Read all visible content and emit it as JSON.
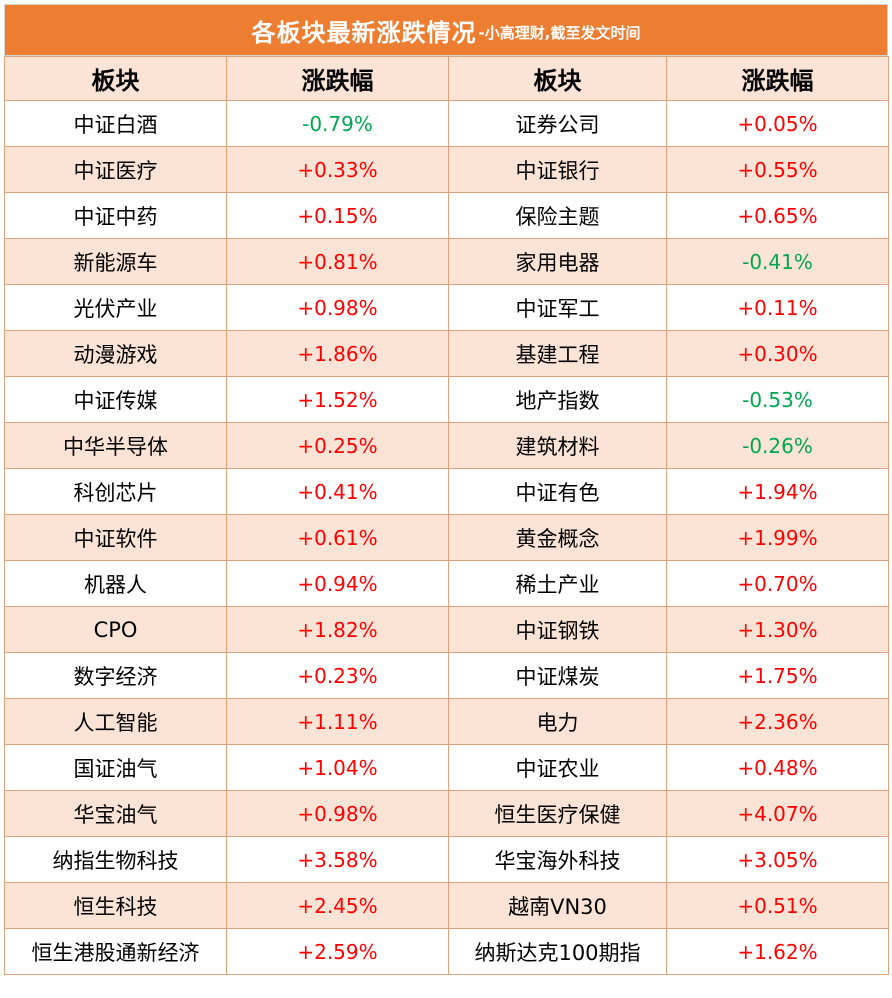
{
  "title": {
    "main": "各板块最新涨跌情况",
    "sub": "-小高理财,截至发文时间"
  },
  "headers": [
    "板块",
    "涨跌幅",
    "板块",
    "涨跌幅"
  ],
  "colors": {
    "header_bg": "#ed7d31",
    "stripe_bg": "#fbe4d5",
    "up": "#ff0000",
    "down": "#00a650"
  },
  "rows": [
    {
      "l_name": "中证白酒",
      "l_val": "-0.79%",
      "r_name": "证券公司",
      "r_val": "+0.05%"
    },
    {
      "l_name": "中证医疗",
      "l_val": "+0.33%",
      "r_name": "中证银行",
      "r_val": "+0.55%"
    },
    {
      "l_name": "中证中药",
      "l_val": "+0.15%",
      "r_name": "保险主题",
      "r_val": "+0.65%"
    },
    {
      "l_name": "新能源车",
      "l_val": "+0.81%",
      "r_name": "家用电器",
      "r_val": "-0.41%"
    },
    {
      "l_name": "光伏产业",
      "l_val": "+0.98%",
      "r_name": "中证军工",
      "r_val": "+0.11%"
    },
    {
      "l_name": "动漫游戏",
      "l_val": "+1.86%",
      "r_name": "基建工程",
      "r_val": "+0.30%"
    },
    {
      "l_name": "中证传媒",
      "l_val": "+1.52%",
      "r_name": "地产指数",
      "r_val": "-0.53%"
    },
    {
      "l_name": "中华半导体",
      "l_val": "+0.25%",
      "r_name": "建筑材料",
      "r_val": "-0.26%"
    },
    {
      "l_name": "科创芯片",
      "l_val": "+0.41%",
      "r_name": "中证有色",
      "r_val": "+1.94%"
    },
    {
      "l_name": "中证软件",
      "l_val": "+0.61%",
      "r_name": "黄金概念",
      "r_val": "+1.99%"
    },
    {
      "l_name": "机器人",
      "l_val": "+0.94%",
      "r_name": "稀土产业",
      "r_val": "+0.70%"
    },
    {
      "l_name": "CPO",
      "l_val": "+1.82%",
      "r_name": "中证钢铁",
      "r_val": "+1.30%"
    },
    {
      "l_name": "数字经济",
      "l_val": "+0.23%",
      "r_name": "中证煤炭",
      "r_val": "+1.75%"
    },
    {
      "l_name": "人工智能",
      "l_val": "+1.11%",
      "r_name": "电力",
      "r_val": "+2.36%"
    },
    {
      "l_name": "国证油气",
      "l_val": "+1.04%",
      "r_name": "中证农业",
      "r_val": "+0.48%"
    },
    {
      "l_name": "华宝油气",
      "l_val": "+0.98%",
      "r_name": "恒生医疗保健",
      "r_val": "+4.07%"
    },
    {
      "l_name": "纳指生物科技",
      "l_val": "+3.58%",
      "r_name": "华宝海外科技",
      "r_val": "+3.05%"
    },
    {
      "l_name": "恒生科技",
      "l_val": "+2.45%",
      "r_name": "越南VN30",
      "r_val": "+0.51%"
    },
    {
      "l_name": "恒生港股通新经济",
      "l_val": "+2.59%",
      "r_name": "纳斯达克100期指",
      "r_val": "+1.62%"
    }
  ]
}
